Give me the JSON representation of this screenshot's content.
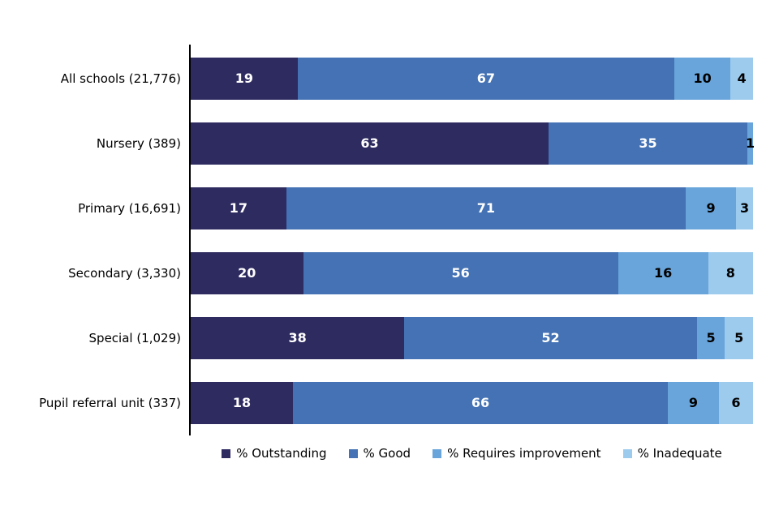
{
  "chart_data": {
    "type": "bar",
    "orientation": "horizontal",
    "stacked": true,
    "title": "",
    "xlabel": "",
    "ylabel": "",
    "xlim": [
      0,
      100
    ],
    "grid": false,
    "legend_position": "bottom",
    "categories": [
      "All schools (21,776)",
      "Nursery (389)",
      "Primary (16,691)",
      "Secondary (3,330)",
      "Special (1,029)",
      "Pupil referral unit (337)"
    ],
    "series": [
      {
        "name": "% Outstanding",
        "color": "#2E2B60",
        "label_color": "#FFFFFF",
        "values": [
          19,
          63,
          17,
          20,
          38,
          18
        ]
      },
      {
        "name": "% Good",
        "color": "#4472B4",
        "label_color": "#FFFFFF",
        "values": [
          67,
          35,
          71,
          56,
          52,
          66
        ]
      },
      {
        "name": "% Requires improvement",
        "color": "#69A5DB",
        "label_color": "#000000",
        "values": [
          10,
          1,
          9,
          16,
          5,
          9
        ]
      },
      {
        "name": "% Inadequate",
        "color": "#9CCBEE",
        "label_color": "#000000",
        "values": [
          4,
          0,
          3,
          8,
          5,
          6
        ]
      }
    ]
  }
}
